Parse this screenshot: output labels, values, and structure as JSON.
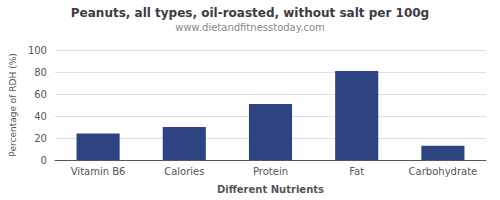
{
  "chart_data": {
    "type": "bar",
    "title": "Peanuts, all types, oil-roasted, without salt per 100g",
    "subtitle": "www.dietandfitnesstoday.com",
    "xlabel": "Different Nutrients",
    "ylabel": "Percentage of RDH (%)",
    "categories": [
      "Vitamin B6",
      "Calories",
      "Protein",
      "Fat",
      "Carbohydrate"
    ],
    "values": [
      24,
      30,
      51,
      81,
      13
    ],
    "color": "#2e4482",
    "ylim": [
      0,
      100
    ],
    "yticks": [
      0,
      20,
      40,
      60,
      80,
      100
    ],
    "grid": true
  }
}
